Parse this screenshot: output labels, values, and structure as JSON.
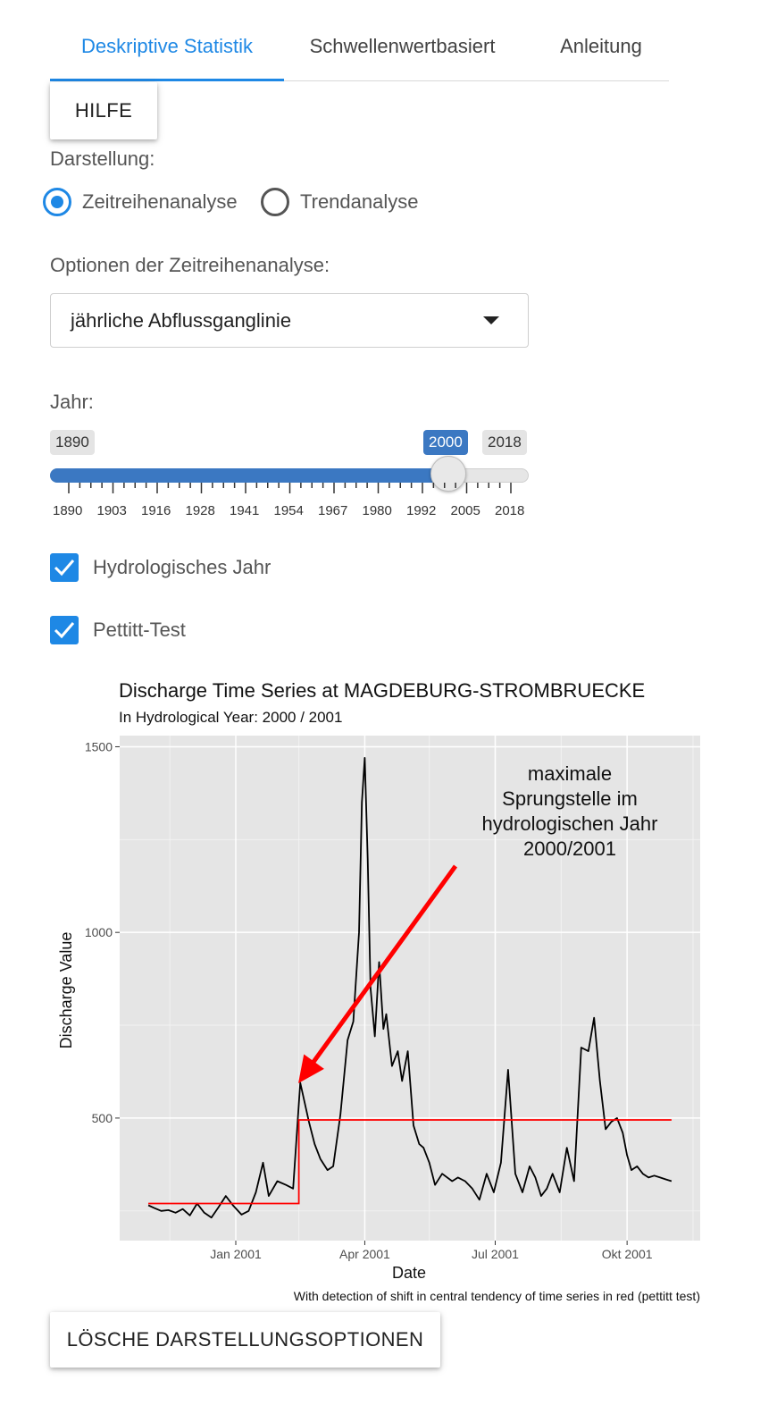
{
  "tabs": [
    {
      "label": "Deskriptive Statistik",
      "active": true
    },
    {
      "label": "Schwellenwertbasiert",
      "active": false
    },
    {
      "label": "Anleitung",
      "active": false
    }
  ],
  "help_button": "HILFE",
  "display": {
    "label": "Darstellung:",
    "options": [
      "Zeitreihenanalyse",
      "Trendanalyse"
    ],
    "selected": "Zeitreihenanalyse"
  },
  "timeseries_options": {
    "label": "Optionen der Zeitreihenanalyse:",
    "selected": "jährliche Abflussganglinie"
  },
  "year_slider": {
    "label": "Jahr:",
    "min": "1890",
    "max": "2018",
    "value": "2000",
    "tick_labels": [
      "1890",
      "1903",
      "1916",
      "1928",
      "1941",
      "1954",
      "1967",
      "1980",
      "1992",
      "2005",
      "2018"
    ]
  },
  "checkboxes": [
    {
      "label": "Hydrologisches Jahr",
      "checked": true
    },
    {
      "label": "Pettitt-Test",
      "checked": true
    }
  ],
  "reset_button": "LÖSCHE DARSTELLUNGSOPTIONEN",
  "colors": {
    "accent": "#1e88e5",
    "slider": "#3b78c2",
    "panel_bg": "#e5e5e5",
    "shift_line": "#ff0000"
  },
  "chart_data": {
    "type": "line",
    "title": "Discharge Time Series at MAGDEBURG-STROMBRUECKE",
    "subtitle": "In Hydrological Year: 2000 / 2001",
    "xlabel": "Date",
    "ylabel": "Discharge Value",
    "caption": "With detection of shift in central tendency of time series in red (pettitt test)",
    "annotation": "maximale Sprungstelle im hydrologischen Jahr 2000/2001",
    "x_ticks": [
      "Jan 2001",
      "Apr 2001",
      "Jul 2001",
      "Okt 2001"
    ],
    "y_ticks": [
      500,
      1000,
      1500
    ],
    "ylim": [
      170,
      1530
    ],
    "xlim": [
      "2000-10-12",
      "2001-11-21"
    ],
    "grid": true,
    "series": [
      {
        "x": [
          "2000-11-01",
          "2000-11-05",
          "2000-11-10",
          "2000-11-15",
          "2000-11-20",
          "2000-11-25",
          "2000-11-30",
          "2000-12-05",
          "2000-12-10",
          "2000-12-15",
          "2000-12-20",
          "2000-12-25",
          "2000-12-30",
          "2001-01-05",
          "2001-01-10",
          "2001-01-15",
          "2001-01-20",
          "2001-01-24",
          "2001-01-30",
          "2001-02-05",
          "2001-02-10",
          "2001-02-15",
          "2001-02-21",
          "2001-02-25",
          "2001-03-01",
          "2001-03-06",
          "2001-03-10",
          "2001-03-15",
          "2001-03-20",
          "2001-03-24",
          "2001-03-28",
          "2001-03-30",
          "2001-04-01",
          "2001-04-03",
          "2001-04-05",
          "2001-04-08",
          "2001-04-11",
          "2001-04-14",
          "2001-04-16",
          "2001-04-20",
          "2001-04-24",
          "2001-04-27",
          "2001-05-01",
          "2001-05-05",
          "2001-05-09",
          "2001-05-12",
          "2001-05-16",
          "2001-05-20",
          "2001-05-25",
          "2001-06-01",
          "2001-06-05",
          "2001-06-10",
          "2001-06-15",
          "2001-06-20",
          "2001-06-25",
          "2001-06-30",
          "2001-07-05",
          "2001-07-10",
          "2001-07-15",
          "2001-07-20",
          "2001-07-25",
          "2001-07-29",
          "2001-08-02",
          "2001-08-06",
          "2001-08-10",
          "2001-08-15",
          "2001-08-20",
          "2001-08-25",
          "2001-08-30",
          "2001-09-04",
          "2001-09-08",
          "2001-09-12",
          "2001-09-16",
          "2001-09-20",
          "2001-09-24",
          "2001-09-28",
          "2001-10-01",
          "2001-10-04",
          "2001-10-08",
          "2001-10-12",
          "2001-10-16",
          "2001-10-20",
          "2001-10-24",
          "2001-10-28",
          "2001-11-01"
        ],
        "y": [
          265,
          258,
          250,
          252,
          245,
          255,
          238,
          270,
          245,
          232,
          260,
          290,
          265,
          240,
          250,
          300,
          380,
          290,
          330,
          320,
          310,
          595,
          490,
          430,
          390,
          360,
          370,
          510,
          710,
          760,
          1000,
          1350,
          1470,
          1200,
          850,
          720,
          920,
          740,
          780,
          640,
          680,
          600,
          680,
          480,
          430,
          420,
          380,
          320,
          350,
          330,
          340,
          330,
          310,
          280,
          350,
          300,
          380,
          630,
          350,
          300,
          370,
          340,
          290,
          310,
          350,
          300,
          420,
          330,
          690,
          680,
          770,
          600,
          470,
          490,
          500,
          460,
          400,
          360,
          370,
          350,
          340,
          345,
          340,
          335,
          330
        ]
      }
    ],
    "pettitt_shift": {
      "change_date": "2001-02-14",
      "before": 270,
      "after": 495,
      "start": "2000-11-01",
      "end": "2001-11-01"
    }
  }
}
